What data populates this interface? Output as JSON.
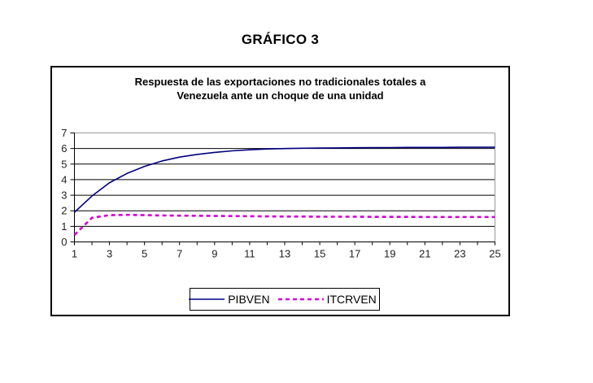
{
  "page_title": "GRÁFICO 3",
  "chart": {
    "title_line1": "Respuesta de las exportaciones no tradicionales totales a",
    "title_line2": "Venezuela ante un choque de una unidad"
  },
  "colors": {
    "pibven": "#000080",
    "itcrven": "#D400D4",
    "gridline": "#000000",
    "plot_border": "#999999",
    "axis_text": "#222222"
  },
  "chart_data": {
    "type": "line",
    "title": "Respuesta de las exportaciones no tradicionales totales a Venezuela ante un choque de una unidad",
    "xlabel": "",
    "ylabel": "",
    "x": [
      1,
      2,
      3,
      4,
      5,
      6,
      7,
      8,
      9,
      10,
      11,
      12,
      13,
      14,
      15,
      16,
      17,
      18,
      19,
      20,
      21,
      22,
      23,
      24,
      25
    ],
    "series": [
      {
        "name": "PIBVEN",
        "color": "#000080",
        "style": "solid",
        "values": [
          1.9,
          2.95,
          3.8,
          4.4,
          4.85,
          5.2,
          5.45,
          5.62,
          5.75,
          5.85,
          5.92,
          5.97,
          6.0,
          6.02,
          6.03,
          6.04,
          6.05,
          6.06,
          6.06,
          6.07,
          6.07,
          6.07,
          6.08,
          6.08,
          6.08
        ]
      },
      {
        "name": "ITCRVEN",
        "color": "#D400D4",
        "style": "dashed",
        "values": [
          0.45,
          1.55,
          1.72,
          1.74,
          1.72,
          1.7,
          1.69,
          1.68,
          1.67,
          1.66,
          1.65,
          1.64,
          1.63,
          1.63,
          1.62,
          1.62,
          1.62,
          1.61,
          1.61,
          1.61,
          1.6,
          1.6,
          1.6,
          1.6,
          1.6
        ]
      }
    ],
    "ylim": [
      0,
      7
    ],
    "xlim": [
      1,
      25
    ],
    "yticks": [
      0,
      1,
      2,
      3,
      4,
      5,
      6,
      7
    ],
    "xticks": [
      1,
      3,
      5,
      7,
      9,
      11,
      13,
      15,
      17,
      19,
      21,
      23,
      25
    ],
    "minor_xticks_every": 1,
    "grid": true,
    "legend_position": "bottom"
  }
}
